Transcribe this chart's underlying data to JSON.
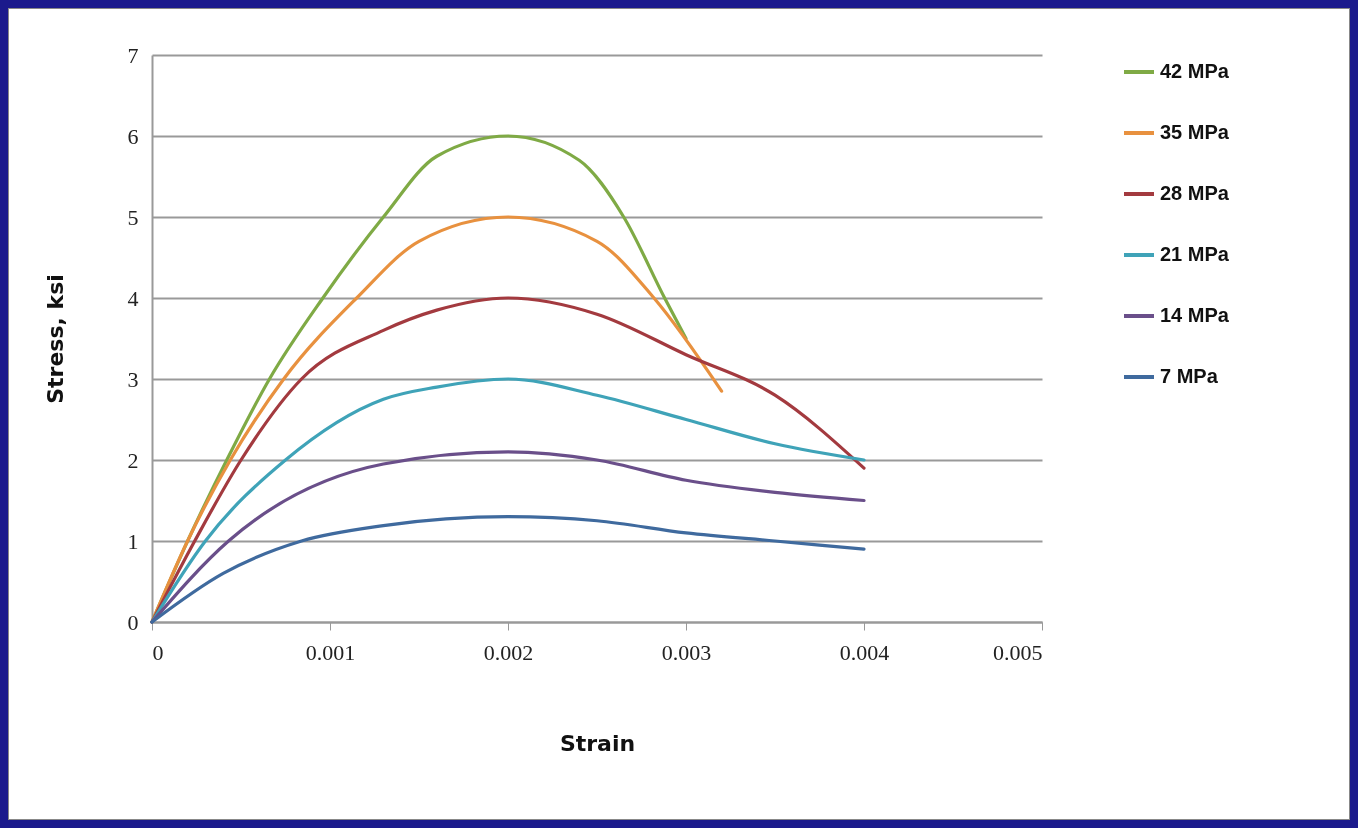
{
  "chart_data": {
    "type": "line",
    "xlabel": "Strain",
    "ylabel": "Stress, ksi",
    "xlim": [
      0,
      0.005
    ],
    "xticks": [
      0,
      0.001,
      0.002,
      0.003,
      0.004,
      0.005
    ],
    "ylim": [
      0,
      7
    ],
    "yticks": [
      0,
      1,
      2,
      3,
      4,
      5,
      6,
      7
    ],
    "grid": "y",
    "legend": "right",
    "marker": "none",
    "line_style": "solid",
    "series": [
      {
        "name": "42 MPa",
        "color": "#7faa45",
        "x": [
          0,
          0.0002,
          0.00042,
          0.00066,
          0.00096,
          0.0013,
          0.0016,
          0.002,
          0.0024,
          0.00265,
          0.00288,
          0.003
        ],
        "values": [
          0,
          1,
          2,
          3,
          4,
          5,
          5.75,
          6,
          5.7,
          5,
          4,
          3.5
        ]
      },
      {
        "name": "35 MPa",
        "color": "#e8913f",
        "x": [
          0,
          0.0002,
          0.00044,
          0.00074,
          0.00115,
          0.0015,
          0.002,
          0.0025,
          0.00282,
          0.0032
        ],
        "values": [
          0,
          1,
          2,
          3,
          4,
          4.7,
          5,
          4.7,
          4,
          2.85
        ]
      },
      {
        "name": "28 MPa",
        "color": "#a33a3f",
        "x": [
          0,
          0.00024,
          0.0005,
          0.00084,
          0.0013,
          0.0016,
          0.002,
          0.0025,
          0.003,
          0.0035,
          0.004
        ],
        "values": [
          0,
          1,
          2,
          3,
          3.6,
          3.85,
          4,
          3.8,
          3.3,
          2.8,
          1.9
        ]
      },
      {
        "name": "21 MPa",
        "color": "#3fa3b8",
        "x": [
          0,
          0.0003,
          0.00075,
          0.0013,
          0.0016,
          0.002,
          0.0025,
          0.003,
          0.0035,
          0.004
        ],
        "values": [
          0,
          1,
          2,
          2.75,
          2.9,
          3,
          2.8,
          2.5,
          2.2,
          2
        ]
      },
      {
        "name": "14 MPa",
        "color": "#6a4f8a",
        "x": [
          0,
          0.00043,
          0.0013,
          0.002,
          0.0025,
          0.003,
          0.0035,
          0.004
        ],
        "values": [
          0,
          1,
          1.95,
          2.1,
          2,
          1.75,
          1.6,
          1.5
        ]
      },
      {
        "name": "7 MPa",
        "color": "#3f6a9e",
        "x": [
          0,
          0.0004,
          0.00084,
          0.0013,
          0.002,
          0.0025,
          0.003,
          0.0035,
          0.004
        ],
        "values": [
          0,
          0.6,
          1,
          1.19,
          1.3,
          1.25,
          1.1,
          1,
          0.9
        ]
      }
    ]
  }
}
